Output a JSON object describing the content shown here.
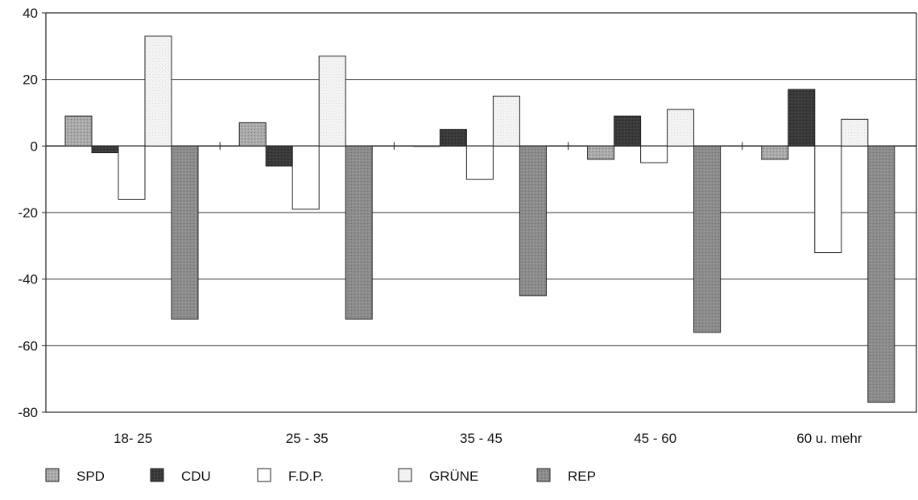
{
  "chart_data": {
    "type": "bar",
    "categories": [
      "18- 25",
      "25 - 35",
      "35 - 45",
      "45 - 60",
      "60 u. mehr"
    ],
    "series": [
      {
        "name": "SPD",
        "values": [
          9,
          7,
          0,
          -4,
          -4
        ],
        "color": "#a9a9a9",
        "pattern": "stipple"
      },
      {
        "name": "CDU",
        "values": [
          -2,
          -6,
          5,
          9,
          17
        ],
        "color": "#3a3a3a",
        "pattern": "dark"
      },
      {
        "name": "F.D.P.",
        "values": [
          -16,
          -19,
          -10,
          -5,
          -32
        ],
        "color": "#ffffff",
        "pattern": "outline"
      },
      {
        "name": "GRÜNE",
        "values": [
          33,
          27,
          15,
          11,
          8
        ],
        "color": "#f2f2f2",
        "pattern": "light-stipple"
      },
      {
        "name": "REP",
        "values": [
          -52,
          -52,
          -45,
          -56,
          -77
        ],
        "color": "#8c8c8c",
        "pattern": "stipple"
      }
    ],
    "ylim": [
      -80,
      40
    ],
    "yticks": [
      -80,
      -60,
      -40,
      -20,
      0,
      20,
      40
    ],
    "ytick_labels": [
      "-80",
      "-60",
      "-40",
      "-20",
      "0",
      "20",
      "40"
    ],
    "grid": true,
    "legend_placement": "bottom",
    "title": "",
    "xlabel": "",
    "ylabel": ""
  }
}
